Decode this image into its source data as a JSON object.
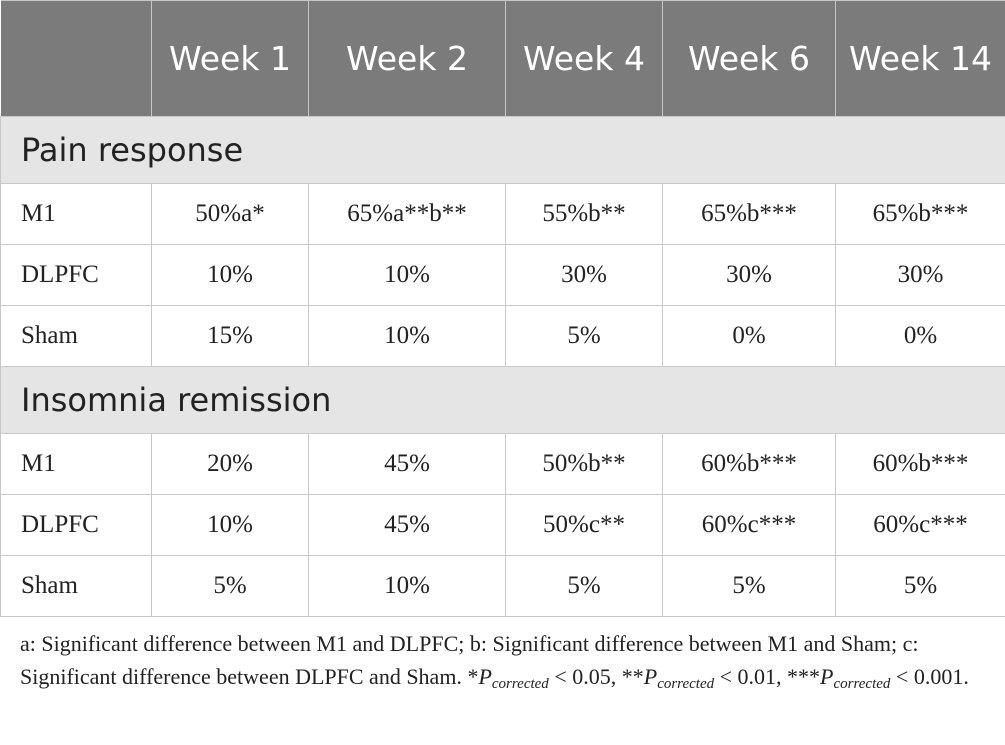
{
  "columns": [
    "",
    "Week 1",
    "Week 2",
    "Week 4",
    "Week 6",
    "Week 14"
  ],
  "sections": [
    {
      "title": "Pain response",
      "rows": [
        {
          "label": "M1",
          "values": [
            "50%a*",
            "65%a**b**",
            "55%b**",
            "65%b***",
            "65%b***"
          ]
        },
        {
          "label": "DLPFC",
          "values": [
            "10%",
            "10%",
            "30%",
            "30%",
            "30%"
          ]
        },
        {
          "label": "Sham",
          "values": [
            "15%",
            "10%",
            "5%",
            "0%",
            "0%"
          ]
        }
      ]
    },
    {
      "title": "Insomnia remission",
      "rows": [
        {
          "label": "M1",
          "values": [
            "20%",
            "45%",
            "50%b**",
            "60%b***",
            "60%b***"
          ]
        },
        {
          "label": "DLPFC",
          "values": [
            "10%",
            "45%",
            "50%c**",
            "60%c***",
            "60%c***"
          ]
        },
        {
          "label": "Sham",
          "values": [
            "5%",
            "10%",
            "5%",
            "5%",
            "5%"
          ]
        }
      ]
    }
  ],
  "footnote": {
    "legend": "a: Significant difference between M1 and DLPFC; b: Significant difference between M1 and Sham; c: Significant difference between DLPFC and Sham.",
    "p_symbol": "P",
    "p_sub": "corrected",
    "p1_prefix": "*",
    "p1_threshold": " < 0.05,",
    "p2_prefix": "**",
    "p2_threshold": " < 0.01,",
    "p3_prefix": "***",
    "p3_threshold": " < 0.001."
  }
}
